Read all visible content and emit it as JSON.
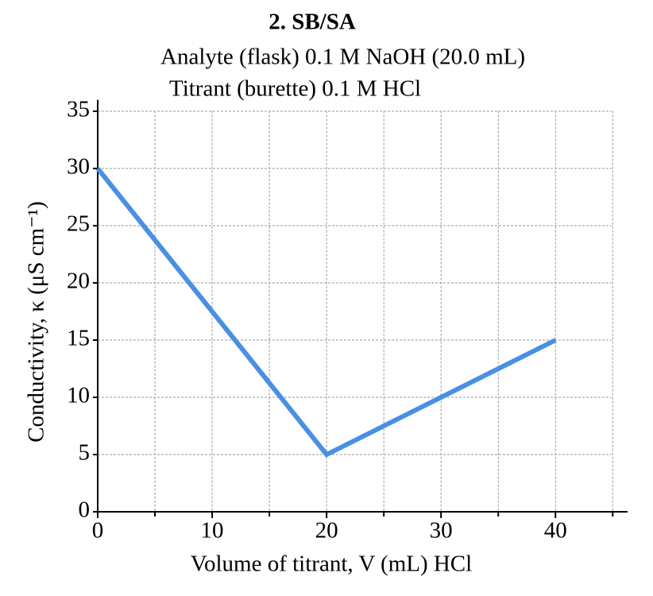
{
  "chart_data": {
    "type": "line",
    "title": "2. SB/SA",
    "subtitle": [
      "Analyte (flask) 0.1 M NaOH (20.0 mL)",
      "Titrant (burette) 0.1 M HCl"
    ],
    "x_label": "Volume of titrant, V (mL) HCl",
    "y_label": "Conductivity, κ (μS cm⁻¹)",
    "x": [
      0,
      20,
      40
    ],
    "series": [
      {
        "color": "#4a90e2",
        "values": [
          30,
          5,
          15
        ]
      }
    ],
    "xlim": [
      0,
      46.3
    ],
    "xticks": [
      0,
      10,
      20,
      30,
      40
    ],
    "minor_xticks": [
      5,
      15,
      25,
      35,
      45
    ],
    "ylim": [
      0,
      36
    ],
    "yticks": [
      0,
      5,
      10,
      15,
      20,
      25,
      30,
      35
    ],
    "grid": true
  }
}
